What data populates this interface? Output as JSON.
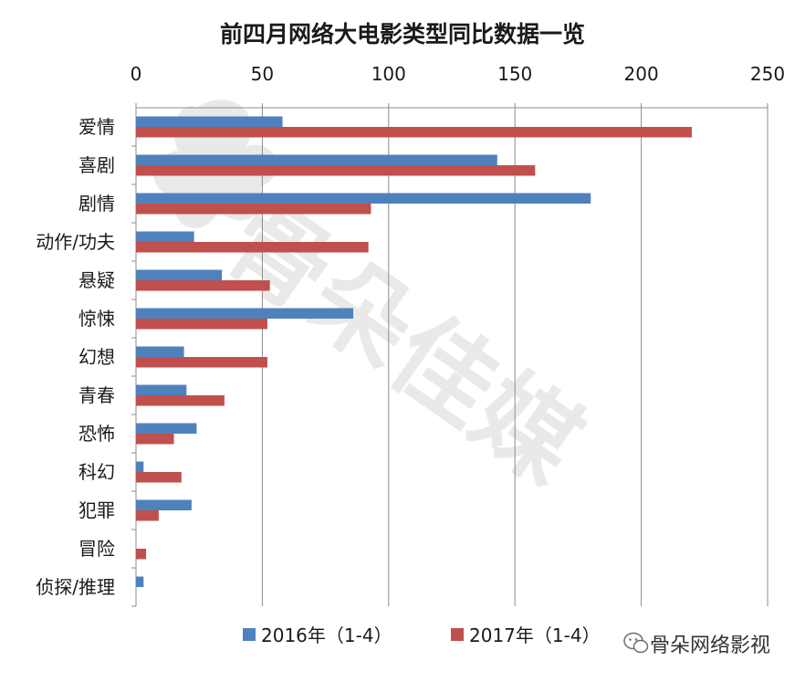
{
  "chart_data": {
    "type": "bar",
    "orientation": "horizontal",
    "title": "前四月网络大电影类型同比数据一览",
    "categories": [
      "爱情",
      "喜剧",
      "剧情",
      "动作/功夫",
      "悬疑",
      "惊悚",
      "幻想",
      "青春",
      "恐怖",
      "科幻",
      "犯罪",
      "冒险",
      "侦探/推理"
    ],
    "series": [
      {
        "name": "2016年（1-4）",
        "color": "#4f81bd",
        "values": [
          58,
          143,
          180,
          23,
          34,
          86,
          19,
          20,
          24,
          3,
          22,
          0,
          3
        ]
      },
      {
        "name": "2017年（1-4）",
        "color": "#c0504d",
        "values": [
          220,
          158,
          93,
          92,
          53,
          52,
          52,
          35,
          15,
          18,
          9,
          4,
          0
        ]
      }
    ],
    "xlim": [
      0,
      250
    ],
    "xticks": [
      "0",
      "50",
      "100",
      "150",
      "200",
      "250"
    ],
    "grid": true,
    "axis_position": "top",
    "legend_position": "bottom"
  },
  "watermark": {
    "text": "骨朵网络影视",
    "icon": "wechat-icon",
    "big_text": "骨朵佳媒"
  }
}
